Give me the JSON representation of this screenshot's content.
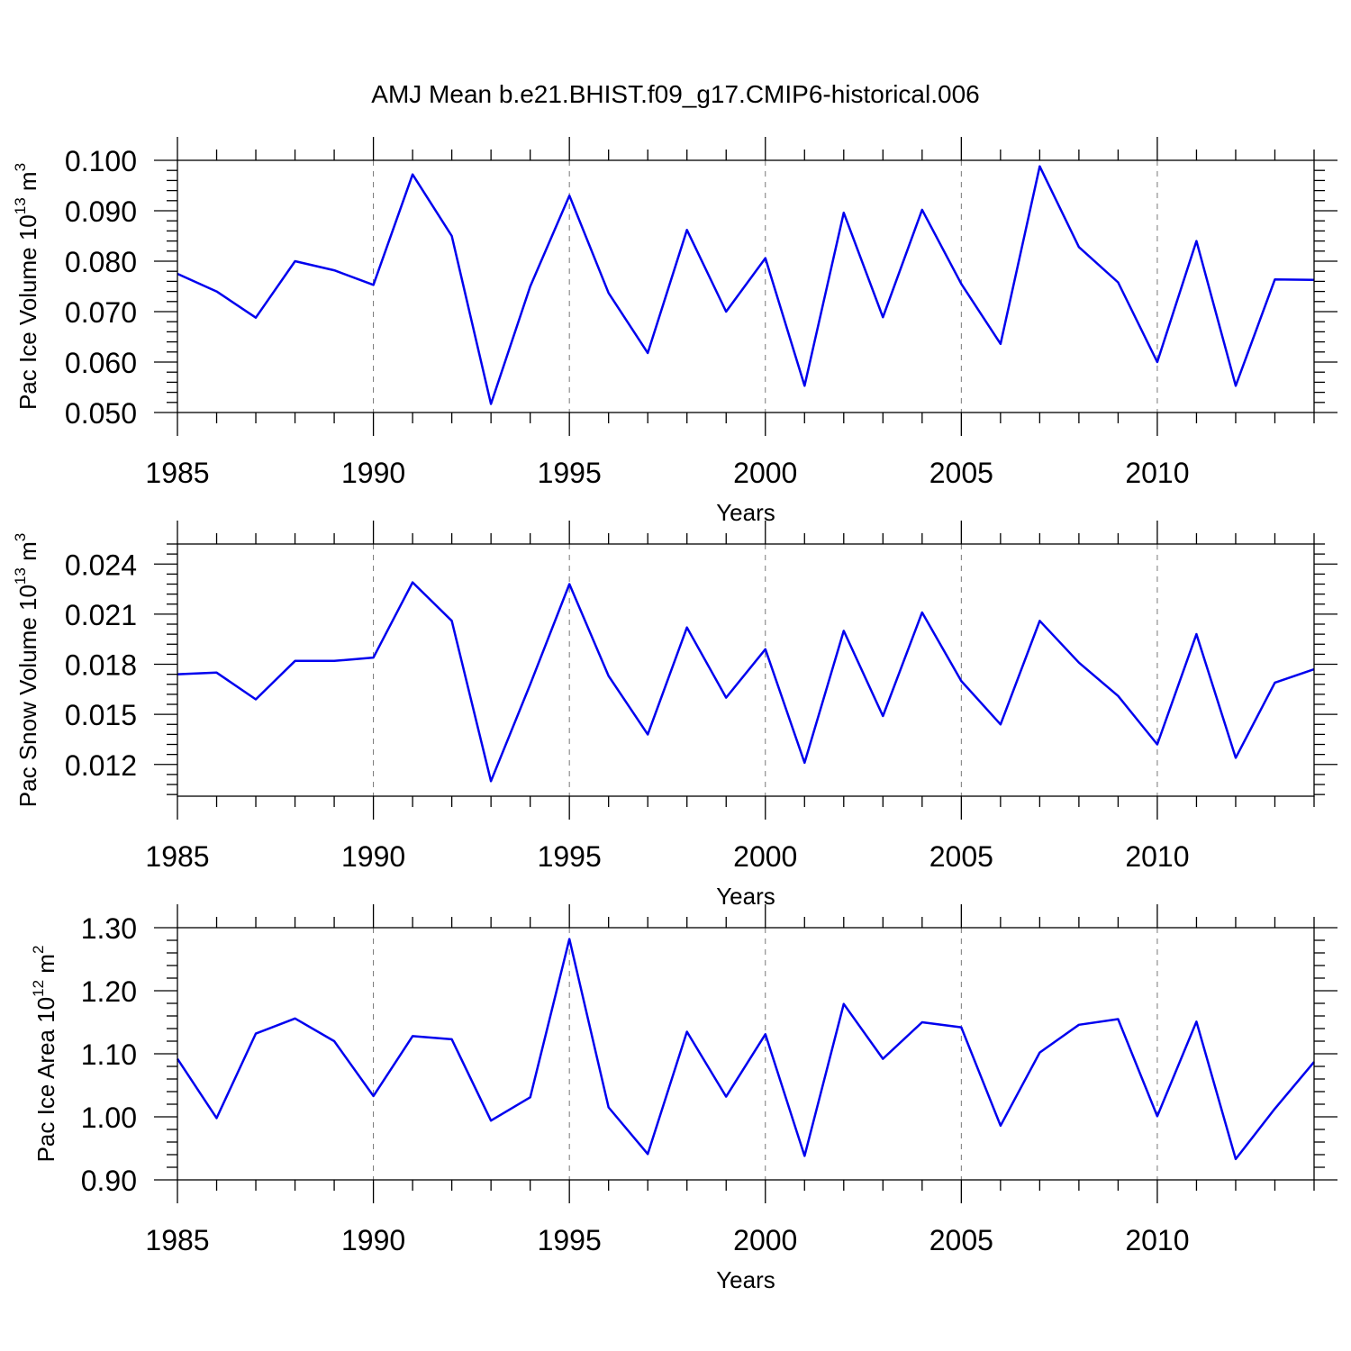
{
  "title": "AMJ Mean b.e21.BHIST.f09_g17.CMIP6-historical.006",
  "colors": {
    "line": "#0000ee",
    "axis": "#000000",
    "grid": "#777777"
  },
  "chart_data": [
    {
      "type": "line",
      "xlabel": "Years",
      "ylabel": {
        "text": "Pac Ice Volume 10",
        "exp": "13",
        "unit": " m",
        "unit_exp": "3"
      },
      "xlim": [
        1985,
        2014
      ],
      "ylim": [
        0.05,
        0.1
      ],
      "xticks": [
        1985,
        1990,
        1995,
        2000,
        2005,
        2010
      ],
      "xtick_labels": [
        "1985",
        "1990",
        "1995",
        "2000",
        "2005",
        "2010"
      ],
      "yticks": [
        0.05,
        0.06,
        0.07,
        0.08,
        0.09,
        0.1
      ],
      "ytick_labels": [
        "0.050",
        "0.060",
        "0.070",
        "0.080",
        "0.090",
        "0.100"
      ],
      "series": [
        {
          "name": "Pac Ice Volume",
          "x": [
            1985,
            1986,
            1987,
            1988,
            1989,
            1990,
            1991,
            1992,
            1993,
            1994,
            1995,
            1996,
            1997,
            1998,
            1999,
            2000,
            2001,
            2002,
            2003,
            2004,
            2005,
            2006,
            2007,
            2008,
            2009,
            2010,
            2011,
            2012,
            2013,
            2014
          ],
          "values": [
            0.0775,
            0.074,
            0.0688,
            0.08,
            0.0782,
            0.0753,
            0.0972,
            0.085,
            0.0517,
            0.075,
            0.093,
            0.0737,
            0.0618,
            0.0862,
            0.07,
            0.0806,
            0.0553,
            0.0896,
            0.0689,
            0.0902,
            0.0755,
            0.0636,
            0.0988,
            0.0828,
            0.0758,
            0.06,
            0.084,
            0.0553,
            0.0764,
            0.0763
          ]
        }
      ]
    },
    {
      "type": "line",
      "xlabel": "Years",
      "ylabel": {
        "text": "Pac Snow Volume 10",
        "exp": "13",
        "unit": " m",
        "unit_exp": "3"
      },
      "xlim": [
        1985,
        2014
      ],
      "ylim": [
        0.0101,
        0.0252
      ],
      "xticks": [
        1985,
        1990,
        1995,
        2000,
        2005,
        2010
      ],
      "xtick_labels": [
        "1985",
        "1990",
        "1995",
        "2000",
        "2005",
        "2010"
      ],
      "yticks": [
        0.012,
        0.015,
        0.018,
        0.021,
        0.024
      ],
      "ytick_labels": [
        "0.012",
        "0.015",
        "0.018",
        "0.021",
        "0.024"
      ],
      "series": [
        {
          "name": "Pac Snow Volume",
          "x": [
            1985,
            1986,
            1987,
            1988,
            1989,
            1990,
            1991,
            1992,
            1993,
            1994,
            1995,
            1996,
            1997,
            1998,
            1999,
            2000,
            2001,
            2002,
            2003,
            2004,
            2005,
            2006,
            2007,
            2008,
            2009,
            2010,
            2011,
            2012,
            2013,
            2014
          ],
          "values": [
            0.0174,
            0.0175,
            0.0159,
            0.0182,
            0.0182,
            0.0184,
            0.0229,
            0.0206,
            0.011,
            0.0168,
            0.0228,
            0.0173,
            0.0138,
            0.0202,
            0.016,
            0.0189,
            0.0121,
            0.02,
            0.0149,
            0.0211,
            0.017,
            0.0144,
            0.0206,
            0.0181,
            0.0161,
            0.0132,
            0.0198,
            0.0124,
            0.0169,
            0.0177
          ]
        }
      ]
    },
    {
      "type": "line",
      "xlabel": "Years",
      "ylabel": {
        "text": "Pac Ice Area 10",
        "exp": "12",
        "unit": " m",
        "unit_exp": "2"
      },
      "xlim": [
        1985,
        2014
      ],
      "ylim": [
        0.9,
        1.3
      ],
      "xticks": [
        1985,
        1990,
        1995,
        2000,
        2005,
        2010
      ],
      "xtick_labels": [
        "1985",
        "1990",
        "1995",
        "2000",
        "2005",
        "2010"
      ],
      "yticks": [
        0.9,
        1.0,
        1.1,
        1.2,
        1.3
      ],
      "ytick_labels": [
        "0.90",
        "1.00",
        "1.10",
        "1.20",
        "1.30"
      ],
      "series": [
        {
          "name": "Pac Ice Area",
          "x": [
            1985,
            1986,
            1987,
            1988,
            1989,
            1990,
            1991,
            1992,
            1993,
            1994,
            1995,
            1996,
            1997,
            1998,
            1999,
            2000,
            2001,
            2002,
            2003,
            2004,
            2005,
            2006,
            2007,
            2008,
            2009,
            2010,
            2011,
            2012,
            2013,
            2014
          ],
          "values": [
            1.092,
            0.998,
            1.132,
            1.156,
            1.12,
            1.033,
            1.128,
            1.123,
            0.994,
            1.031,
            1.282,
            1.015,
            0.941,
            1.135,
            1.032,
            1.131,
            0.938,
            1.179,
            1.092,
            1.15,
            1.142,
            0.986,
            1.102,
            1.146,
            1.155,
            1.001,
            1.151,
            0.933,
            1.013,
            1.087
          ]
        }
      ]
    }
  ]
}
